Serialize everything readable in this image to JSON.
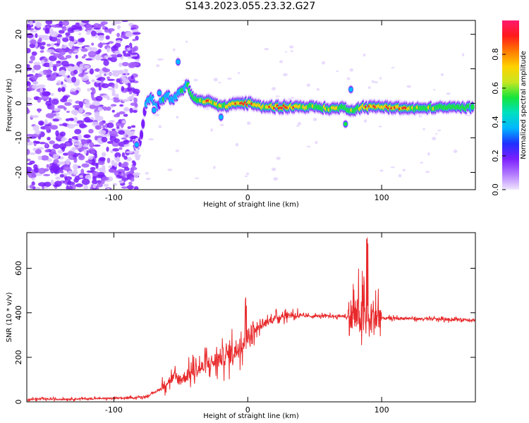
{
  "title": "S143.2023.055.23.32.G27",
  "colors": {
    "snr_line": "#e8282a",
    "scatter_noise": "#8a2be2",
    "colormap": [
      "#f0e6ff",
      "#b37aff",
      "#7b1fff",
      "#1f2fff",
      "#00b7ff",
      "#00e0c0",
      "#16e53c",
      "#c8e620",
      "#ffd200",
      "#ff7a00",
      "#ff1a1a",
      "#ff1a6e"
    ]
  },
  "chart_data": [
    {
      "type": "heatmap",
      "xlabel": "Height of straight line (km)",
      "ylabel": "Frequency (Hz)",
      "xlim": [
        -165,
        170
      ],
      "ylim": [
        -25,
        24
      ],
      "xticks": [
        -100,
        0,
        100
      ],
      "xtick_labels": [
        "-100",
        "0",
        "100"
      ],
      "yticks": [
        -20,
        -10,
        0,
        10,
        20
      ],
      "ytick_labels": [
        "-20",
        "-10",
        "0",
        "10",
        "20"
      ],
      "colorbar": {
        "label": "Normalized spectral amplitude",
        "range": [
          0,
          1
        ],
        "ticks": [
          0.0,
          0.2,
          0.4,
          0.6,
          0.8
        ],
        "tick_labels": [
          "0.0",
          "0.2",
          "0.4",
          "0.6",
          "0.8"
        ]
      },
      "ridge": {
        "x": [
          -83,
          -80,
          -76,
          -72,
          -68,
          -64,
          -60,
          -56,
          -52,
          -48,
          -45,
          -42,
          -38,
          -34,
          -30,
          -26,
          -22,
          -18,
          -14,
          -10,
          -6,
          -2,
          2,
          6,
          10,
          20,
          30,
          40,
          50,
          60,
          66,
          70,
          74,
          78,
          82,
          86,
          90,
          95,
          100,
          105,
          110,
          120,
          130,
          140,
          150,
          160,
          168
        ],
        "freq": [
          -12,
          -11,
          0,
          1.5,
          -1,
          1,
          2.5,
          0.5,
          3,
          4,
          6,
          2,
          1,
          0.5,
          0.5,
          0.5,
          -0.5,
          -1,
          -0.5,
          0,
          0,
          0,
          0,
          -0.5,
          -1,
          -1,
          -1,
          -1,
          -1,
          -1.5,
          -1.5,
          -1.2,
          -1.5,
          -2,
          -1.5,
          -1,
          -1.2,
          -1,
          -1,
          -1,
          -1.2,
          -1.5,
          -1.5,
          -1.2,
          -1.2,
          -1.2,
          -1.2
        ],
        "amp": [
          0.3,
          0.3,
          0.35,
          0.4,
          0.35,
          0.4,
          0.45,
          0.4,
          0.45,
          0.5,
          0.5,
          0.55,
          0.6,
          0.75,
          0.9,
          0.8,
          0.7,
          0.65,
          0.75,
          0.85,
          0.95,
          0.95,
          0.9,
          0.75,
          0.7,
          0.9,
          0.95,
          0.7,
          0.65,
          0.7,
          0.7,
          0.6,
          0.55,
          0.6,
          0.6,
          0.75,
          0.8,
          0.8,
          0.85,
          0.9,
          0.95,
          0.8,
          0.65,
          0.6,
          0.6,
          0.55,
          0.5
        ]
      }
    },
    {
      "type": "line",
      "xlabel": "Height of straight line (km)",
      "ylabel": "SNR (10 * v/v)",
      "xlim": [
        -165,
        170
      ],
      "ylim": [
        0,
        760
      ],
      "xticks": [
        -100,
        0,
        100
      ],
      "xtick_labels": [
        "-100",
        "0",
        "100"
      ],
      "yticks": [
        0,
        200,
        400,
        600
      ],
      "ytick_labels": [
        "0",
        "200",
        "400",
        "600"
      ],
      "series": [
        {
          "x": [
            -165,
            -140,
            -120,
            -100,
            -85,
            -75,
            -70,
            -65,
            -60,
            -55,
            -50,
            -45,
            -40,
            -35,
            -30,
            -25,
            -20,
            -15,
            -10,
            -5,
            0,
            5,
            10,
            15,
            20,
            25,
            30,
            35,
            40,
            50,
            60,
            70,
            75,
            80,
            85,
            90,
            95,
            100,
            110,
            120,
            130,
            140,
            150,
            160,
            170
          ],
          "values": [
            12,
            12,
            14,
            16,
            18,
            25,
            40,
            60,
            90,
            110,
            100,
            120,
            140,
            150,
            170,
            180,
            200,
            210,
            230,
            260,
            290,
            320,
            340,
            360,
            375,
            385,
            390,
            390,
            385,
            385,
            385,
            385,
            380,
            390,
            380,
            370,
            385,
            375,
            375,
            375,
            372,
            372,
            370,
            370,
            368
          ]
        }
      ]
    }
  ]
}
